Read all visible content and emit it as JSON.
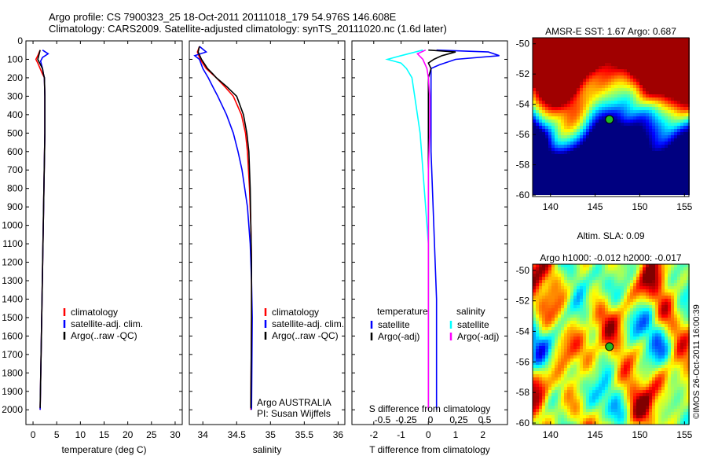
{
  "header": {
    "line1": "Argo profile: CS 7900323_25 18-Oct-2011 20111018_179 54.976S 146.608E",
    "line2": "Climatology: CARS2009. Satellite-adjusted climatology: synTS_20111020.nc (1.6d later)"
  },
  "footer_stamp": "©IMOS 26-Oct-2011 16:00:39",
  "colors": {
    "climatology": "#ff0000",
    "satellite": "#0000ff",
    "argo": "#000000",
    "salinity_sat": "#00ffff",
    "salinity_argo": "#ff00ff"
  },
  "chart_data": [
    {
      "id": "temperature",
      "type": "line",
      "xlabel": "temperature (deg C)",
      "ylabel": "",
      "xlim": [
        -1.5,
        31.5
      ],
      "xticks": [
        0,
        5,
        10,
        15,
        20,
        25,
        30
      ],
      "ylim": [
        0,
        2080
      ],
      "yticks": [
        0,
        100,
        200,
        300,
        400,
        500,
        600,
        700,
        800,
        900,
        1000,
        1100,
        1200,
        1300,
        1400,
        1500,
        1600,
        1700,
        1800,
        1900,
        2000
      ],
      "legend": [
        "climatology",
        "satellite-adj. clim.",
        "Argo(..raw -QC)"
      ],
      "series": [
        {
          "name": "climatology",
          "color": "#ff0000",
          "depth": [
            50,
            80,
            100,
            120,
            150,
            180,
            200,
            300,
            500,
            800,
            1100,
            1400,
            1700,
            2000
          ],
          "x": [
            1.5,
            1.0,
            0.6,
            1.0,
            1.5,
            2.0,
            2.4,
            2.5,
            2.5,
            2.3,
            2.1,
            1.9,
            1.7,
            1.5
          ]
        },
        {
          "name": "satellite-adj. clim.",
          "color": "#0000ff",
          "depth": [
            50,
            70,
            90,
            110,
            130,
            150,
            180,
            200,
            300,
            500,
            800,
            1100,
            1400,
            1700,
            2000
          ],
          "x": [
            2.0,
            3.2,
            2.0,
            1.6,
            1.8,
            2.0,
            2.2,
            2.4,
            2.5,
            2.5,
            2.3,
            2.1,
            1.9,
            1.7,
            1.5
          ]
        },
        {
          "name": "Argo(..raw -QC)",
          "color": "#000000",
          "depth": [
            50,
            80,
            100,
            120,
            150,
            180,
            200,
            300,
            500,
            800,
            1100,
            1400,
            1700,
            1990
          ],
          "x": [
            1.5,
            1.2,
            1.0,
            1.4,
            2.0,
            2.2,
            2.4,
            2.5,
            2.5,
            2.3,
            2.1,
            1.9,
            1.7,
            1.5
          ]
        }
      ]
    },
    {
      "id": "salinity",
      "type": "line",
      "xlabel": "salinity",
      "ylabel": "",
      "xlim": [
        33.8,
        36.1
      ],
      "xticks": [
        34,
        34.5,
        35,
        35.5,
        36
      ],
      "ylim": [
        0,
        2080
      ],
      "legend": [
        "climatology",
        "satellite-adj. clim.",
        "Argo(..raw -QC)"
      ],
      "annotation": [
        "Argo AUSTRALIA",
        "PI: Susan Wijffels"
      ],
      "series": [
        {
          "name": "climatology",
          "color": "#ff0000",
          "depth": [
            30,
            60,
            100,
            150,
            200,
            250,
            300,
            400,
            500,
            600,
            800,
            1000,
            1200,
            1500,
            2000
          ],
          "x": [
            33.95,
            33.92,
            33.96,
            34.05,
            34.2,
            34.33,
            34.45,
            34.57,
            34.63,
            34.66,
            34.69,
            34.71,
            34.72,
            34.72,
            34.71
          ]
        },
        {
          "name": "satellite-adj. clim.",
          "color": "#0000ff",
          "depth": [
            30,
            60,
            80,
            100,
            150,
            200,
            250,
            300,
            400,
            500,
            600,
            700,
            900,
            1100,
            1300,
            1500,
            2000
          ],
          "x": [
            33.95,
            34.05,
            33.88,
            33.95,
            34.0,
            34.08,
            34.15,
            34.22,
            34.35,
            34.45,
            34.52,
            34.58,
            34.66,
            34.7,
            34.72,
            34.73,
            34.72
          ]
        },
        {
          "name": "Argo(..raw -QC)",
          "color": "#000000",
          "depth": [
            30,
            60,
            100,
            150,
            180,
            200,
            250,
            300,
            400,
            500,
            600,
            800,
            1000,
            1200,
            1500,
            1990
          ],
          "x": [
            33.95,
            33.93,
            33.98,
            34.07,
            34.15,
            34.2,
            34.36,
            34.5,
            34.6,
            34.65,
            34.68,
            34.7,
            34.71,
            34.72,
            34.72,
            34.71
          ]
        }
      ]
    },
    {
      "id": "difference",
      "type": "line",
      "xlabel": "T difference from climatology",
      "top_xlabel": "S difference from climatology",
      "xlim": [
        -2.8,
        2.9
      ],
      "xticks": [
        -2,
        -1,
        0,
        1,
        2
      ],
      "top_xticks": [
        "-0.5",
        "-0.25",
        "0",
        "0.25",
        "0.5"
      ],
      "ylim": [
        0,
        2080
      ],
      "legend_left_title": "temperature",
      "legend_left": [
        "satellite",
        "Argo(-adj)"
      ],
      "legend_right_title": "salinity",
      "legend_right": [
        "satellite",
        "Argo(-adj)"
      ],
      "series": [
        {
          "name": "temperature satellite",
          "color": "#0000ff",
          "depth": [
            50,
            60,
            80,
            100,
            130,
            150,
            200,
            300,
            600,
            1000,
            1400,
            1800,
            2000
          ],
          "x": [
            0.3,
            2.2,
            2.6,
            1.0,
            0.4,
            0.1,
            0.1,
            0.1,
            0.1,
            0.2,
            0.3,
            0.3,
            0.3
          ]
        },
        {
          "name": "temperature Argo(-adj)",
          "color": "#000000",
          "depth": [
            50,
            60,
            80,
            100,
            120,
            150,
            200,
            300,
            600,
            1000,
            1400,
            1800,
            1990
          ],
          "x": [
            0.0,
            1.0,
            0.5,
            0.2,
            0.0,
            0.1,
            0.0,
            0.0,
            0.0,
            0.0,
            0.0,
            0.0,
            0.0
          ]
        },
        {
          "name": "salinity satellite",
          "color": "#00ffff",
          "depth": [
            50,
            80,
            100,
            120,
            150,
            200,
            300,
            500,
            700,
            900,
            1100,
            1300,
            1500,
            1800,
            2000
          ],
          "x": [
            -0.2,
            -1.0,
            -1.5,
            -1.0,
            -0.8,
            -0.6,
            -0.5,
            -0.3,
            -0.2,
            -0.1,
            0.0,
            0.0,
            0.0,
            0.0,
            0.0
          ]
        },
        {
          "name": "salinity Argo(-adj)",
          "color": "#ff00ff",
          "depth": [
            50,
            70,
            100,
            150,
            200,
            300,
            500,
            700,
            900,
            1100,
            1400,
            1700,
            2000
          ],
          "x": [
            -0.1,
            -0.4,
            -0.2,
            -0.05,
            0.0,
            0.05,
            0.05,
            0.0,
            0.0,
            0.0,
            0.0,
            0.0,
            0.0
          ]
        }
      ]
    },
    {
      "id": "sst_map",
      "type": "heatmap",
      "title": "AMSR-E SST: 1.67 Argo: 0.687",
      "xticks": [
        140,
        145,
        150,
        155
      ],
      "yticks": [
        -50,
        -52,
        -54,
        -56,
        -58,
        -60
      ],
      "xlim": [
        138,
        155.5
      ],
      "ylim": [
        -60.1,
        -49.6
      ],
      "marker": {
        "lon": 146.6,
        "lat": -55.0
      }
    },
    {
      "id": "sla_map",
      "type": "heatmap",
      "title": "Altim. SLA: 0.09",
      "subtitle": "Argo h1000: -0.012 h2000: -0.017",
      "xticks": [
        140,
        145,
        150,
        155
      ],
      "yticks": [
        -50,
        -52,
        -54,
        -56,
        -58,
        -60
      ],
      "xlim": [
        138,
        155.5
      ],
      "ylim": [
        -60.1,
        -49.6
      ],
      "marker": {
        "lon": 146.6,
        "lat": -55.0
      }
    }
  ]
}
